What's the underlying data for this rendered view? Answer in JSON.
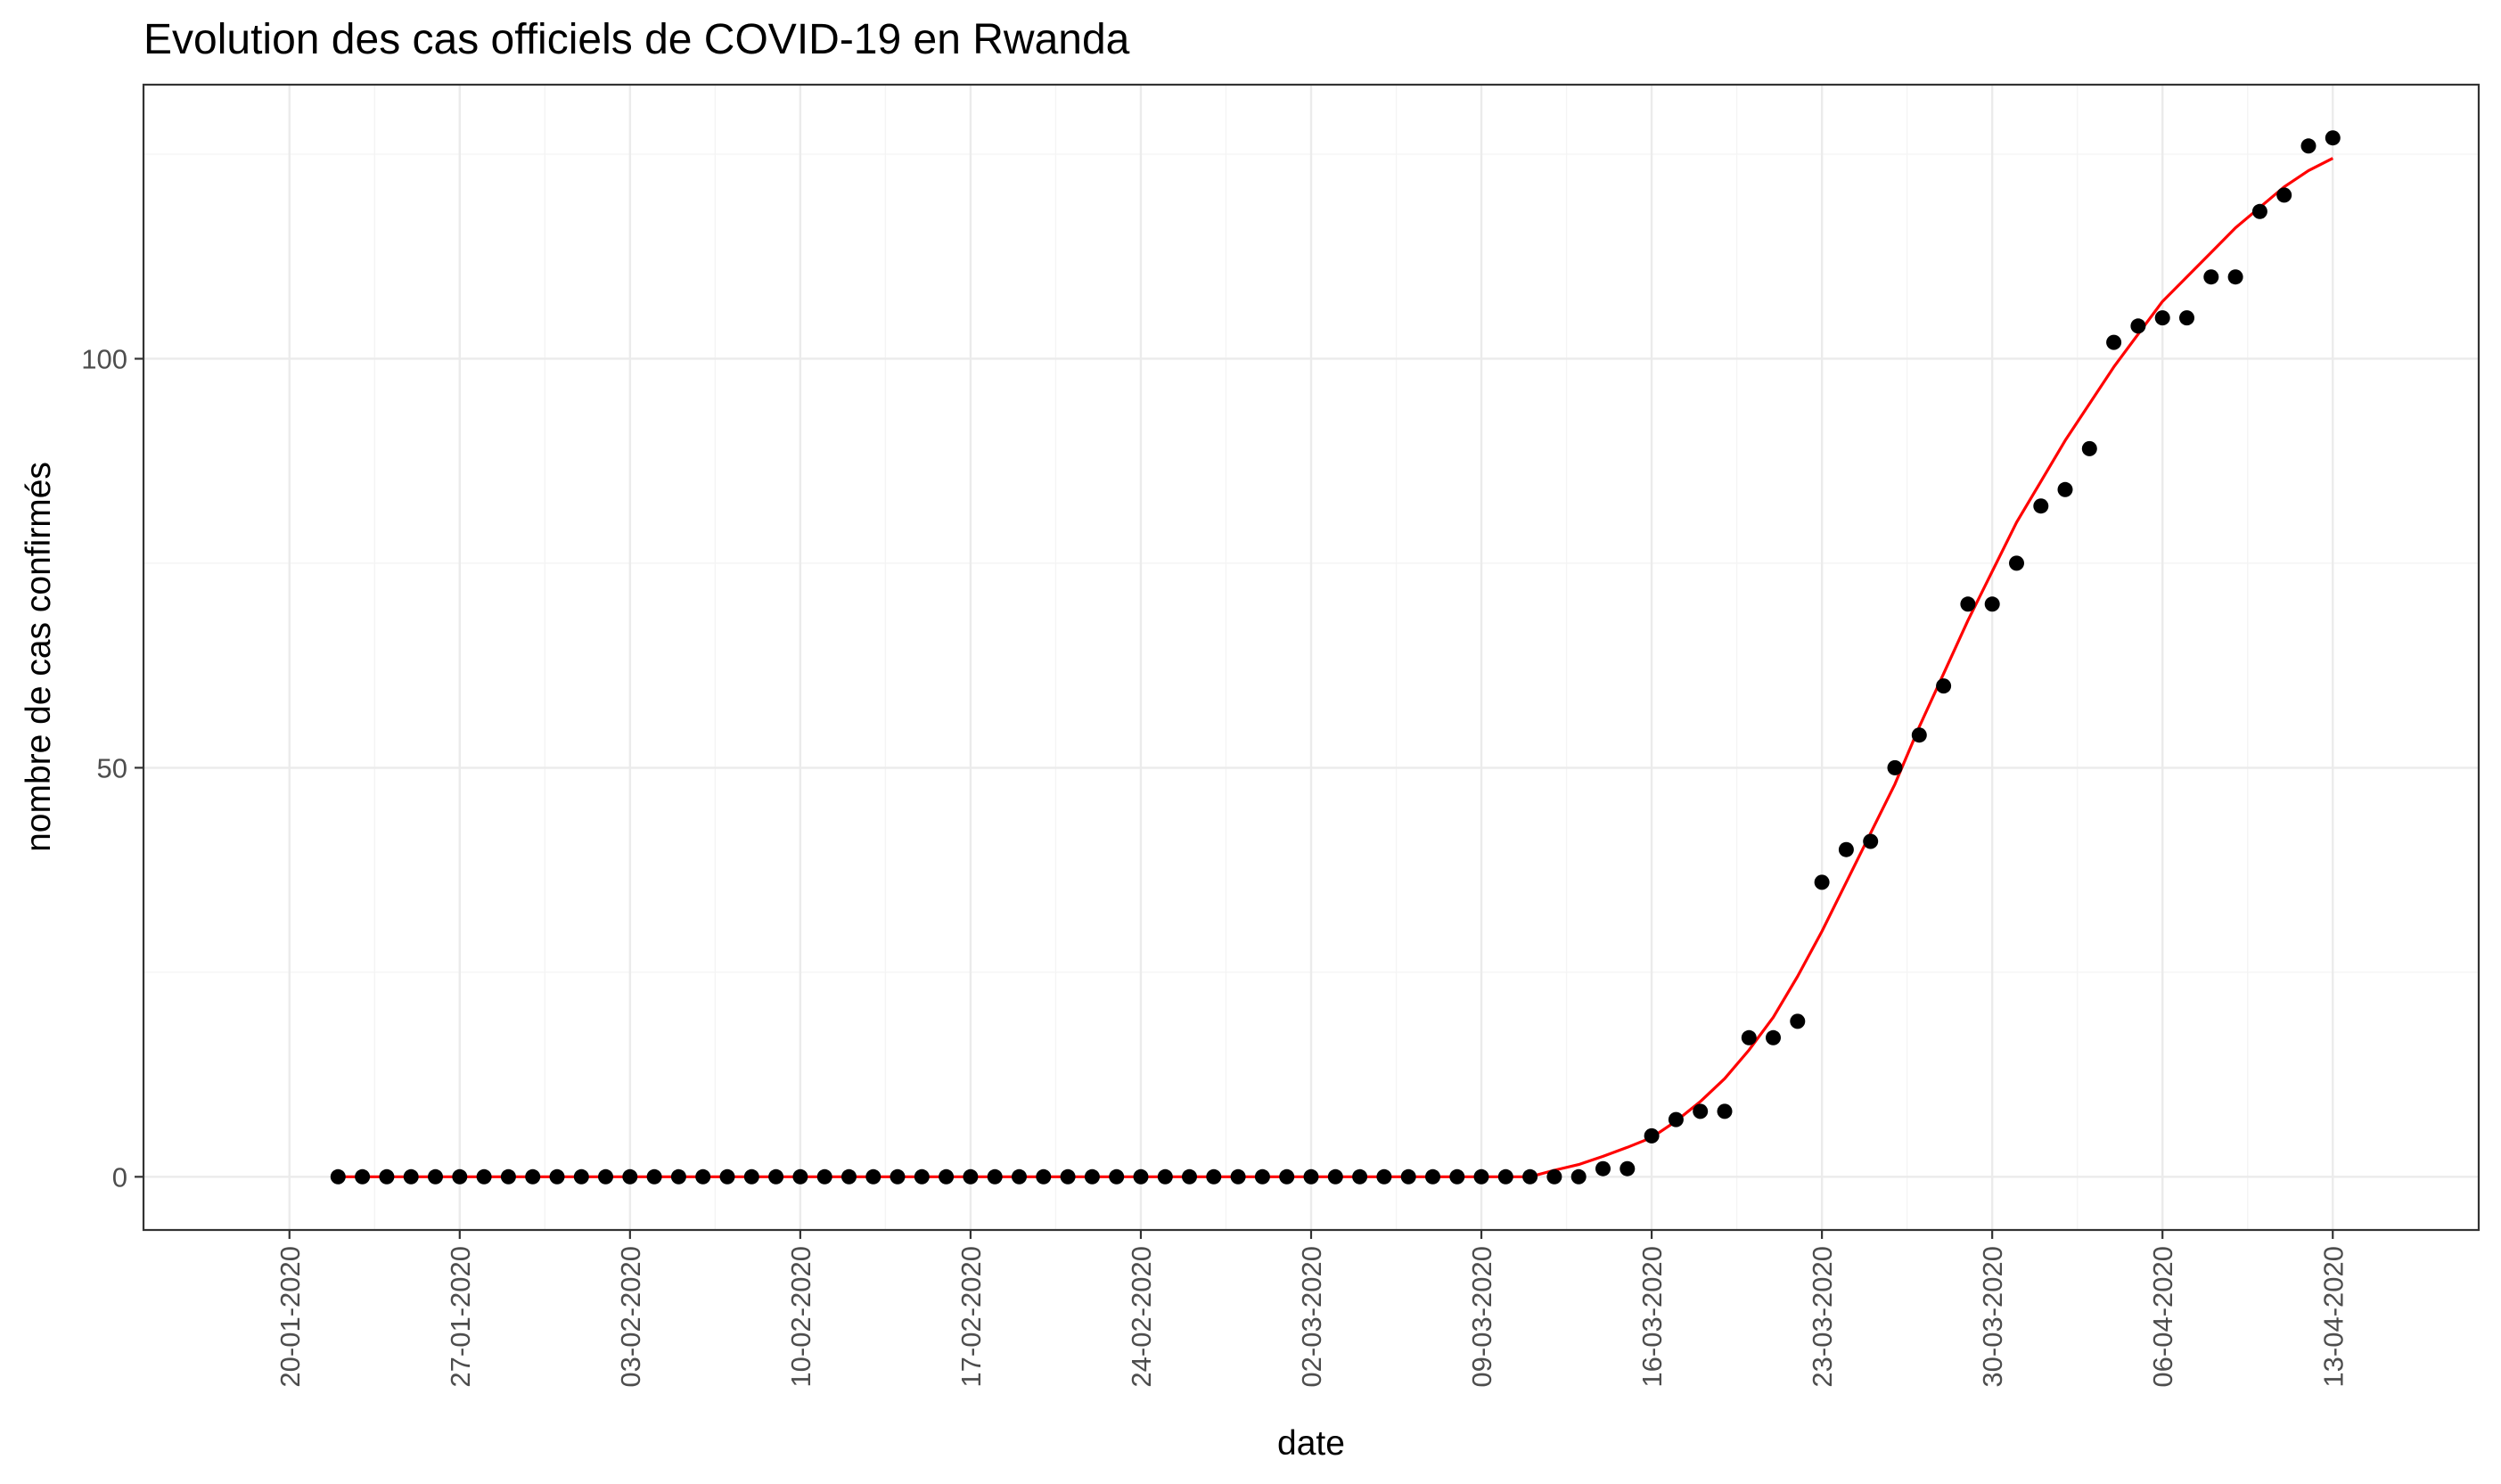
{
  "chart_data": {
    "type": "scatter",
    "title": "Evolution des cas officiels de COVID-19 en Rwanda",
    "xlabel": "date",
    "ylabel": "nombre de cas confirmés",
    "x_start": "2020-01-22",
    "xlim": [
      "2020-01-14",
      "2020-04-19"
    ],
    "ylim": [
      -6.5,
      133.5
    ],
    "x_ticks": [
      {
        "date": "2020-01-20",
        "label": "20-01-2020"
      },
      {
        "date": "2020-01-27",
        "label": "27-01-2020"
      },
      {
        "date": "2020-02-03",
        "label": "03-02-2020"
      },
      {
        "date": "2020-02-10",
        "label": "10-02-2020"
      },
      {
        "date": "2020-02-17",
        "label": "17-02-2020"
      },
      {
        "date": "2020-02-24",
        "label": "24-02-2020"
      },
      {
        "date": "2020-03-02",
        "label": "02-03-2020"
      },
      {
        "date": "2020-03-09",
        "label": "09-03-2020"
      },
      {
        "date": "2020-03-16",
        "label": "16-03-2020"
      },
      {
        "date": "2020-03-23",
        "label": "23-03-2020"
      },
      {
        "date": "2020-03-30",
        "label": "30-03-2020"
      },
      {
        "date": "2020-04-06",
        "label": "06-04-2020"
      },
      {
        "date": "2020-04-13",
        "label": "13-04-2020"
      }
    ],
    "y_ticks": [
      {
        "value": 0,
        "label": "0"
      },
      {
        "value": 50,
        "label": "50"
      },
      {
        "value": 100,
        "label": "100"
      }
    ],
    "grid": true,
    "series": [
      {
        "kind": "points",
        "color": "#000000",
        "values": [
          0,
          0,
          0,
          0,
          0,
          0,
          0,
          0,
          0,
          0,
          0,
          0,
          0,
          0,
          0,
          0,
          0,
          0,
          0,
          0,
          0,
          0,
          0,
          0,
          0,
          0,
          0,
          0,
          0,
          0,
          0,
          0,
          0,
          0,
          0,
          0,
          0,
          0,
          0,
          0,
          0,
          0,
          0,
          0,
          0,
          0,
          0,
          0,
          0,
          0,
          0,
          0,
          1,
          1,
          5,
          7,
          8,
          8,
          17,
          17,
          19,
          36,
          40,
          41,
          50,
          54,
          60,
          70,
          70,
          75,
          82,
          84,
          89,
          102,
          104,
          105,
          105,
          110,
          110,
          118,
          120,
          126,
          127
        ]
      },
      {
        "kind": "fit-line",
        "color": "#ff0000",
        "values": [
          0,
          0,
          0,
          0,
          0,
          0,
          0,
          0,
          0,
          0,
          0,
          0,
          0,
          0,
          0,
          0,
          0,
          0,
          0,
          0,
          0,
          0,
          0,
          0,
          0,
          0,
          0,
          0,
          0,
          0,
          0,
          0,
          0,
          0,
          0,
          0,
          0,
          0,
          0,
          0,
          0,
          0,
          0,
          0,
          0,
          0,
          0,
          0,
          0,
          0,
          0.8,
          1.5,
          2.5,
          3.6,
          4.8,
          6.8,
          9.2,
          12,
          15.5,
          19.5,
          24.5,
          30,
          36,
          42,
          48,
          55,
          61.5,
          68,
          74,
          80,
          85,
          90,
          94.5,
          99,
          103,
          107,
          110,
          113,
          116,
          118.5,
          121,
          123,
          124.5
        ]
      }
    ]
  }
}
